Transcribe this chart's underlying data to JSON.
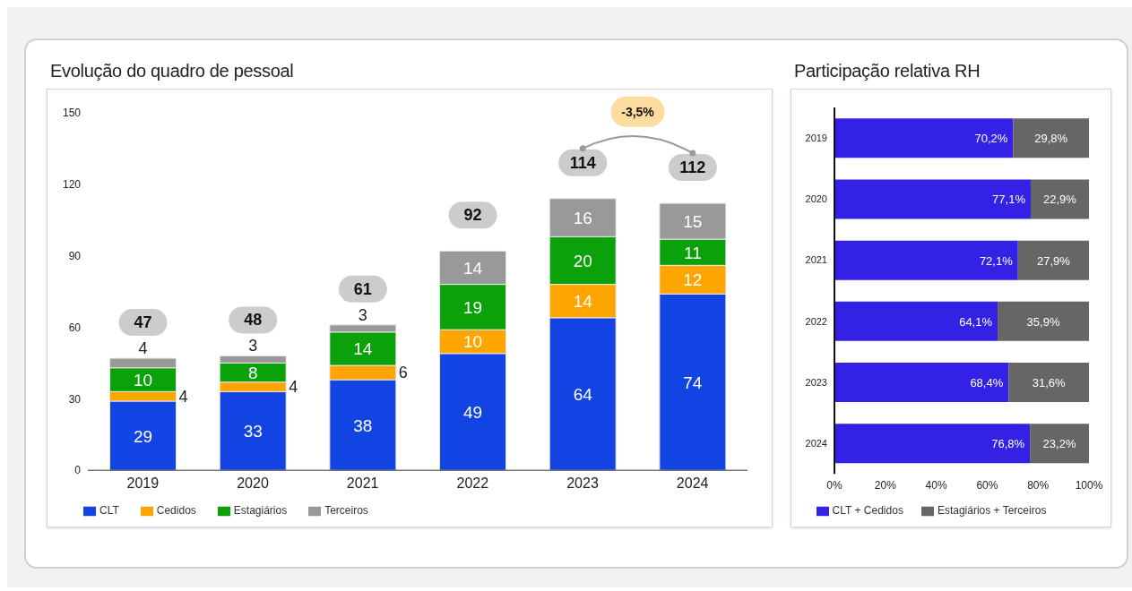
{
  "chart_data": [
    {
      "type": "bar",
      "title": "Evolução do quadro de pessoal",
      "stacked": true,
      "categories": [
        "2019",
        "2020",
        "2021",
        "2022",
        "2023",
        "2024"
      ],
      "series": [
        {
          "name": "CLT",
          "color": "#1244e3",
          "values": [
            29,
            33,
            38,
            49,
            64,
            74
          ]
        },
        {
          "name": "Cedidos",
          "color": "#ffa500",
          "values": [
            4,
            4,
            6,
            10,
            14,
            12
          ]
        },
        {
          "name": "Estagiários",
          "color": "#0aa10a",
          "values": [
            10,
            8,
            14,
            19,
            20,
            11
          ]
        },
        {
          "name": "Terceiros",
          "color": "#999999",
          "values": [
            4,
            3,
            3,
            14,
            16,
            15
          ]
        }
      ],
      "ylim": [
        0,
        150
      ],
      "yticks": [
        0,
        30,
        60,
        90,
        120,
        150
      ],
      "grid": false,
      "legend": "bottom left",
      "data_labels": true,
      "totals": [
        "47",
        "48",
        "61",
        "92",
        "114",
        "112"
      ],
      "annotations": [
        "-3,5%"
      ]
    },
    {
      "type": "bar",
      "title": "Participação relativa RH",
      "stacked": true,
      "orientation": "horizontal",
      "categories": [
        "2019",
        "2020",
        "2021",
        "2022",
        "2023",
        "2024"
      ],
      "series": [
        {
          "name": "CLT + Cedidos",
          "color": "#3322e6",
          "values": [
            70.2,
            77.1,
            72.1,
            64.1,
            68.4,
            76.8
          ],
          "value_labels": [
            "70,2%",
            "77,1%",
            "72,1%",
            "64,1%",
            "68,4%",
            "76,8%"
          ]
        },
        {
          "name": "Estagiários + Terceiros",
          "color": "#666666",
          "values": [
            29.8,
            22.9,
            27.9,
            35.9,
            31.6,
            23.2
          ],
          "value_labels": [
            "29,8%",
            "22,9%",
            "27,9%",
            "35,9%",
            "31,6%",
            "23,2%"
          ]
        }
      ],
      "xlim": [
        0,
        100
      ],
      "xticks": [
        {
          "value": 0,
          "label": "0%"
        },
        {
          "value": 20,
          "label": "20%"
        },
        {
          "value": 40,
          "label": "40%"
        },
        {
          "value": 60,
          "label": "60%"
        },
        {
          "value": 80,
          "label": "80%"
        },
        {
          "value": 100,
          "label": "100%"
        }
      ],
      "grid": false,
      "legend": "bottom"
    }
  ]
}
